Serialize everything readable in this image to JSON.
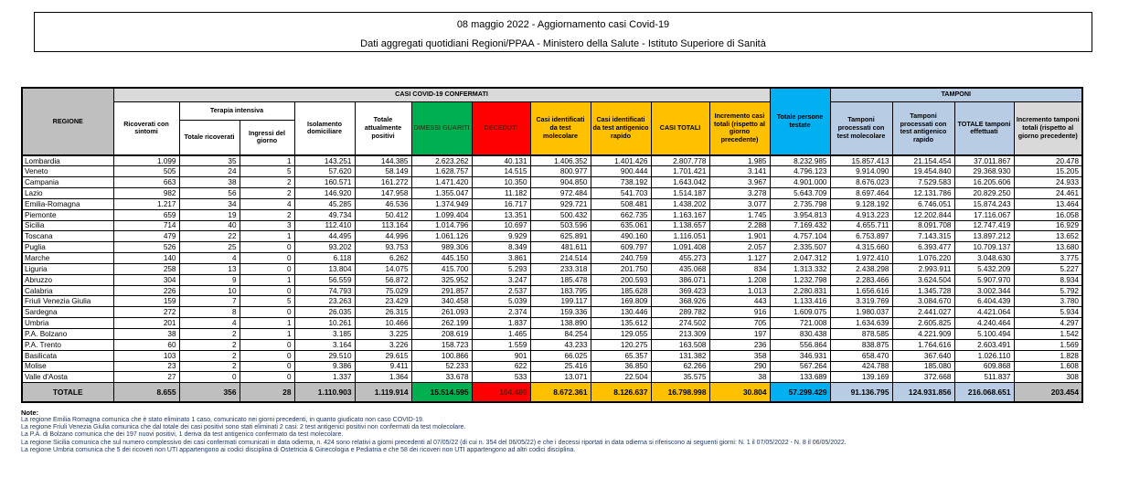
{
  "title": {
    "line1": "08 maggio 2022 - Aggiornamento casi Covid-19",
    "line2": "Dati aggregati quotidiani Regioni/PPAA - Ministero della Salute - Istituto Superiore di Sanità"
  },
  "table": {
    "groups": {
      "confirmed": "CASI COVID-19 CONFERMATI",
      "tamponi": "TAMPONI"
    },
    "headers": {
      "regione": "REGIONE",
      "ricoverati": "Ricoverati con sintomi",
      "terapia_intensiva": "Terapia intensiva",
      "totale_ricoverati": "Totale ricoverati",
      "ingressi_giorno": "Ingressi del giorno",
      "isolamento": "Isolamento domiciliare",
      "attualmente_positivi": "Totale attualmente positivi",
      "dimessi": "DIMESSI GUARITI",
      "deceduti": "DECEDUTI",
      "casi_molecolare": "Casi identificati da test molecolare",
      "casi_antigenico": "Casi identificati da test antigenico rapido",
      "casi_totali": "CASI TOTALI",
      "incremento_casi": "Incremento casi totali (rispetto al giorno precedente)",
      "persone_testate": "Totale persone testate",
      "tamponi_molecolare": "Tamponi processati con test molecolare",
      "tamponi_antigenico": "Tamponi processati con test antigenico rapido",
      "totale_tamponi": "TOTALE tamponi effettuati",
      "incremento_tamponi": "Incremento tamponi totali (rispetto al giorno precedente)"
    },
    "rows": [
      {
        "region": "Lombardia",
        "values": [
          "1.099",
          "35",
          "1",
          "143.251",
          "144.385",
          "2.623.262",
          "40.131",
          "1.406.352",
          "1.401.426",
          "2.807.778",
          "1.985",
          "8.232.985",
          "15.857.413",
          "21.154.454",
          "37.011.867",
          "20.478"
        ]
      },
      {
        "region": "Veneto",
        "values": [
          "505",
          "24",
          "5",
          "57.620",
          "58.149",
          "1.628.757",
          "14.515",
          "800.977",
          "900.444",
          "1.701.421",
          "3.141",
          "4.796.123",
          "9.914.090",
          "19.454.840",
          "29.368.930",
          "15.205"
        ]
      },
      {
        "region": "Campania",
        "values": [
          "663",
          "38",
          "2",
          "160.571",
          "161.272",
          "1.471.420",
          "10.350",
          "904.850",
          "738.192",
          "1.643.042",
          "3.967",
          "4.901.000",
          "8.676.023",
          "7.529.583",
          "16.205.606",
          "24.933"
        ]
      },
      {
        "region": "Lazio",
        "values": [
          "982",
          "56",
          "2",
          "146.920",
          "147.958",
          "1.355.047",
          "11.182",
          "972.484",
          "541.703",
          "1.514.187",
          "3.278",
          "5.643.709",
          "8.697.464",
          "12.131.786",
          "20.829.250",
          "24.461"
        ]
      },
      {
        "region": "Emilia-Romagna",
        "values": [
          "1.217",
          "34",
          "4",
          "45.285",
          "46.536",
          "1.374.949",
          "16.717",
          "929.721",
          "508.481",
          "1.438.202",
          "3.077",
          "2.735.798",
          "9.128.192",
          "6.746.051",
          "15.874.243",
          "13.464"
        ]
      },
      {
        "region": "Piemonte",
        "values": [
          "659",
          "19",
          "2",
          "49.734",
          "50.412",
          "1.099.404",
          "13.351",
          "500.432",
          "662.735",
          "1.163.167",
          "1.745",
          "3.954.813",
          "4.913.223",
          "12.202.844",
          "17.116.067",
          "16.058"
        ]
      },
      {
        "region": "Sicilia",
        "values": [
          "714",
          "40",
          "3",
          "112.410",
          "113.164",
          "1.014.796",
          "10.697",
          "503.596",
          "635.061",
          "1.138.657",
          "2.288",
          "7.169.432",
          "4.655.711",
          "8.091.708",
          "12.747.419",
          "16.929"
        ]
      },
      {
        "region": "Toscana",
        "values": [
          "479",
          "22",
          "1",
          "44.495",
          "44.996",
          "1.061.126",
          "9.929",
          "625.891",
          "490.160",
          "1.116.051",
          "1.901",
          "4.757.104",
          "6.753.897",
          "7.143.315",
          "13.897.212",
          "13.652"
        ]
      },
      {
        "region": "Puglia",
        "values": [
          "526",
          "25",
          "0",
          "93.202",
          "93.753",
          "989.306",
          "8.349",
          "481.611",
          "609.797",
          "1.091.408",
          "2.057",
          "2.335.507",
          "4.315.660",
          "6.393.477",
          "10.709.137",
          "13.680"
        ]
      },
      {
        "region": "Marche",
        "values": [
          "140",
          "4",
          "0",
          "6.118",
          "6.262",
          "445.150",
          "3.861",
          "214.514",
          "240.759",
          "455.273",
          "1.127",
          "2.047.312",
          "1.972.410",
          "1.076.220",
          "3.048.630",
          "3.775"
        ]
      },
      {
        "region": "Liguria",
        "values": [
          "258",
          "13",
          "0",
          "13.804",
          "14.075",
          "415.700",
          "5.293",
          "233.318",
          "201.750",
          "435.068",
          "834",
          "1.313.332",
          "2.438.298",
          "2.993.911",
          "5.432.209",
          "5.227"
        ]
      },
      {
        "region": "Abruzzo",
        "values": [
          "304",
          "9",
          "1",
          "56.559",
          "56.872",
          "325.952",
          "3.247",
          "185.478",
          "200.593",
          "386.071",
          "1.208",
          "1.232.798",
          "2.283.466",
          "3.624.504",
          "5.907.970",
          "8.934"
        ]
      },
      {
        "region": "Calabria",
        "values": [
          "226",
          "10",
          "0",
          "74.793",
          "75.029",
          "291.857",
          "2.537",
          "183.795",
          "185.628",
          "369.423",
          "1.013",
          "2.280.831",
          "1.656.616",
          "1.345.728",
          "3.002.344",
          "5.792"
        ]
      },
      {
        "region": "Friuli Venezia Giulia",
        "values": [
          "159",
          "7",
          "5",
          "23.263",
          "23.429",
          "340.458",
          "5.039",
          "199.117",
          "169.809",
          "368.926",
          "443",
          "1.133.416",
          "3.319.769",
          "3.084.670",
          "6.404.439",
          "3.780"
        ]
      },
      {
        "region": "Sardegna",
        "values": [
          "272",
          "8",
          "0",
          "26.035",
          "26.315",
          "261.093",
          "2.374",
          "159.336",
          "130.446",
          "289.782",
          "916",
          "1.609.075",
          "1.980.037",
          "2.441.027",
          "4.421.064",
          "5.934"
        ]
      },
      {
        "region": "Umbria",
        "values": [
          "201",
          "4",
          "1",
          "10.261",
          "10.466",
          "262.199",
          "1.837",
          "138.890",
          "135.612",
          "274.502",
          "705",
          "721.008",
          "1.634.639",
          "2.605.825",
          "4.240.464",
          "4.297"
        ]
      },
      {
        "region": "P.A. Bolzano",
        "values": [
          "38",
          "2",
          "1",
          "3.185",
          "3.225",
          "208.619",
          "1.465",
          "84.254",
          "129.055",
          "213.309",
          "197",
          "830.438",
          "878.585",
          "4.221.909",
          "5.100.494",
          "1.542"
        ]
      },
      {
        "region": "P.A. Trento",
        "values": [
          "60",
          "2",
          "0",
          "3.164",
          "3.226",
          "158.723",
          "1.559",
          "43.233",
          "120.275",
          "163.508",
          "236",
          "556.864",
          "838.875",
          "1.764.616",
          "2.603.491",
          "1.569"
        ]
      },
      {
        "region": "Basilicata",
        "values": [
          "103",
          "2",
          "0",
          "29.510",
          "29.615",
          "100.866",
          "901",
          "66.025",
          "65.357",
          "131.382",
          "358",
          "346.931",
          "658.470",
          "367.640",
          "1.026.110",
          "1.828"
        ]
      },
      {
        "region": "Molise",
        "values": [
          "23",
          "2",
          "0",
          "9.386",
          "9.411",
          "52.233",
          "622",
          "25.416",
          "36.850",
          "62.266",
          "290",
          "567.264",
          "424.788",
          "185.080",
          "609.868",
          "1.608"
        ]
      },
      {
        "region": "Valle d'Aosta",
        "values": [
          "27",
          "0",
          "0",
          "1.337",
          "1.364",
          "33.678",
          "533",
          "13.071",
          "22.504",
          "35.575",
          "38",
          "133.689",
          "139.169",
          "372.668",
          "511.837",
          "308"
        ]
      }
    ],
    "total_row": {
      "region": "TOTALE",
      "values": [
        "8.655",
        "356",
        "28",
        "1.110.903",
        "1.119.914",
        "15.514.595",
        "164.489",
        "8.672.361",
        "8.126.637",
        "16.798.998",
        "30.804",
        "57.299.429",
        "91.136.795",
        "124.931.856",
        "216.068.651",
        "203.454"
      ]
    }
  },
  "notes": {
    "label": "Note:",
    "items": [
      "La regione Emilia Romagna comunica che è stato eliminato 1 caso, comunicato nei giorni precedenti, in quanto giudicato non caso COVID-19.",
      "La regione Friuli Venezia Giulia comunica che dal totale dei casi positivi sono stati eliminati 2 casi: 2 test antigenici positivi non confermati da test molecolare.",
      "La P.A. di Bolzano comunica che dei 197 nuovi positivi, 1 deriva da test antigenico confermato da test molecolare.",
      "La regione Sicilia comunica che sul numero complessivo dei casi confermati comunicati in data odierna, n. 424 sono relativi a giorni precedenti al 07/05/22 (di cui n. 354 del 06/05/22) e che i decessi riportati in data odierna si riferiscono ai seguenti giorni: N. 1 il 07/05/2022 - N. 8 il 06/05/2022.",
      "La regione Umbria comunica che 5 dei ricoveri non UTI appartengono ai codici disciplina di Ostetricia & Ginecologia e Pediatria e che 58 dei ricoveri non UTI appartengono ad altri codici disciplina."
    ]
  },
  "colors": {
    "header_gray": "#BFBFBF",
    "band_gray": "#D9D9D9",
    "green": "#00B050",
    "red": "#FF0000",
    "yellow": "#FFC000",
    "cyan": "#00B0F0",
    "light_blue": "#B8CCE4",
    "note_text": "#1F3864"
  }
}
